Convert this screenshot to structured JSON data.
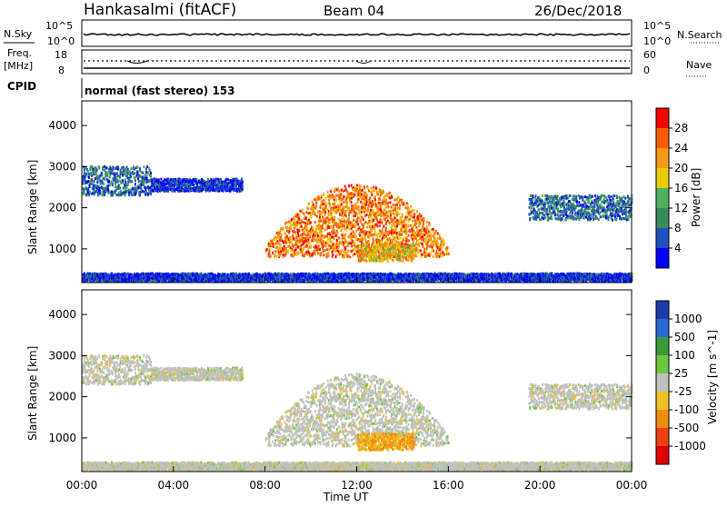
{
  "header": {
    "station": "Hankasalmi (fitACF)",
    "beam": "Beam 04",
    "date": "26/Dec/2018"
  },
  "sky_panel": {
    "left_label": "N.Sky",
    "right_label": "N.Search",
    "left_ticks": [
      "10^5",
      "10^0"
    ],
    "right_ticks": [
      "10^5",
      "10^0"
    ]
  },
  "freq_panel": {
    "left_label_1": "Freq.",
    "left_label_2": "[MHz]",
    "left_ticks": [
      "18",
      "8"
    ],
    "right_ticks": [
      "60",
      "0"
    ],
    "right_label": "Nave",
    "cpid_label": "CPID",
    "cpid_text": "normal (fast stereo) 153"
  },
  "power_panel": {
    "ylabel": "Slant Range [km]",
    "yticks": [
      "4000",
      "3000",
      "2000",
      "1000"
    ],
    "cbar_label": "Power [dB]",
    "cbar_ticks": [
      "28",
      "24",
      "20",
      "16",
      "12",
      "8",
      "4"
    ],
    "cbar_colors": [
      "#ff0000",
      "#ff5a00",
      "#f59a12",
      "#e8cc00",
      "#50b060",
      "#3a8a60",
      "#2050c0",
      "#0000ff"
    ]
  },
  "velocity_panel": {
    "ylabel": "Slant Range [km]",
    "yticks": [
      "4000",
      "3000",
      "2000",
      "1000"
    ],
    "cbar_label": "Velocity [m s^-1]",
    "cbar_ticks": [
      "1000",
      "500",
      "100",
      "25",
      "-25",
      "-100",
      "-500",
      "-1000"
    ],
    "cbar_colors": [
      "#1a3aa8",
      "#2a6ad0",
      "#3a9a3a",
      "#6ac840",
      "#c0c0bc",
      "#f0c020",
      "#f08c10",
      "#f04010",
      "#e00000"
    ]
  },
  "time_axis": {
    "xlabel": "Time UT",
    "xticks": [
      "00:00",
      "04:00",
      "08:00",
      "12:00",
      "16:00",
      "20:00",
      "00:00"
    ]
  },
  "chart_data": {
    "type": "heatmap",
    "title": "Hankasalmi (fitACF) Beam 04 26/Dec/2018",
    "xlabel": "Time UT",
    "ylabel": "Slant Range [km]",
    "xlim": [
      "00:00",
      "24:00"
    ],
    "ylim": [
      180,
      4600
    ],
    "power_range_db": [
      0,
      32
    ],
    "velocity_range_ms": [
      -1000,
      1000
    ],
    "echo_regions": [
      {
        "name": "early",
        "t_start": 0.0,
        "t_end": 3.0,
        "range_km": [
          2300,
          3000
        ],
        "power_db": 10,
        "velocity": 0
      },
      {
        "name": "morning",
        "t_start": 3.0,
        "t_end": 7.0,
        "range_km": [
          2400,
          2700
        ],
        "power_db": 6,
        "velocity": 0
      },
      {
        "name": "day_core",
        "t_start": 8.0,
        "t_end": 16.0,
        "range_km": [
          800,
          2600
        ],
        "power_db": 26,
        "velocity": 0
      },
      {
        "name": "noon_flow",
        "t_start": 12.0,
        "t_end": 14.5,
        "range_km": [
          700,
          1100
        ],
        "power_db": 22,
        "velocity": -100
      },
      {
        "name": "night",
        "t_start": 19.5,
        "t_end": 24.0,
        "range_km": [
          1700,
          2300
        ],
        "power_db": 10,
        "velocity": 0
      },
      {
        "name": "ground",
        "t_start": 0.0,
        "t_end": 24.0,
        "range_km": [
          200,
          400
        ],
        "power_db": 6,
        "velocity": 0
      }
    ]
  }
}
